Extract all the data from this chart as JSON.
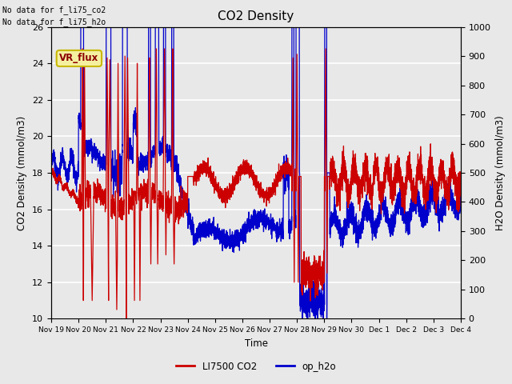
{
  "title": "CO2 Density",
  "xlabel": "Time",
  "ylabel_left": "CO2 Density (mmol/m3)",
  "ylabel_right": "H2O Density (mmol/m3)",
  "text_upper_left_1": "No data for f_li75_co2",
  "text_upper_left_2": "No data for f_li75_h2o",
  "vr_flux_label": "VR_flux",
  "legend_entries": [
    "LI7500 CO2",
    "op_h2o"
  ],
  "legend_colors": [
    "#cc0000",
    "#0000cc"
  ],
  "ylim_left": [
    10,
    26
  ],
  "ylim_right": [
    0,
    1000
  ],
  "yticks_left": [
    10,
    12,
    14,
    16,
    18,
    20,
    22,
    24,
    26
  ],
  "yticks_right": [
    0,
    100,
    200,
    300,
    400,
    500,
    600,
    700,
    800,
    900,
    1000
  ],
  "xtick_days": [
    0,
    1,
    2,
    3,
    4,
    5,
    6,
    7,
    8,
    9,
    10,
    11,
    12,
    13,
    14,
    15
  ],
  "xtick_labels": [
    "Nov 19",
    "Nov 20",
    "Nov 21",
    "Nov 22",
    "Nov 23",
    "Nov 24",
    "Nov 25",
    "Nov 26",
    "Nov 27",
    "Nov 28",
    "Nov 29",
    "Nov 30",
    "Dec 1",
    "Dec 2",
    "Dec 3",
    "Dec 4"
  ],
  "fig_bg": "#e8e8e8",
  "plot_bg": "#e8e8e8",
  "grid_color": "#ffffff",
  "line_color_red": "#cc0000",
  "line_color_blue": "#0000cc",
  "linewidth": 0.9
}
